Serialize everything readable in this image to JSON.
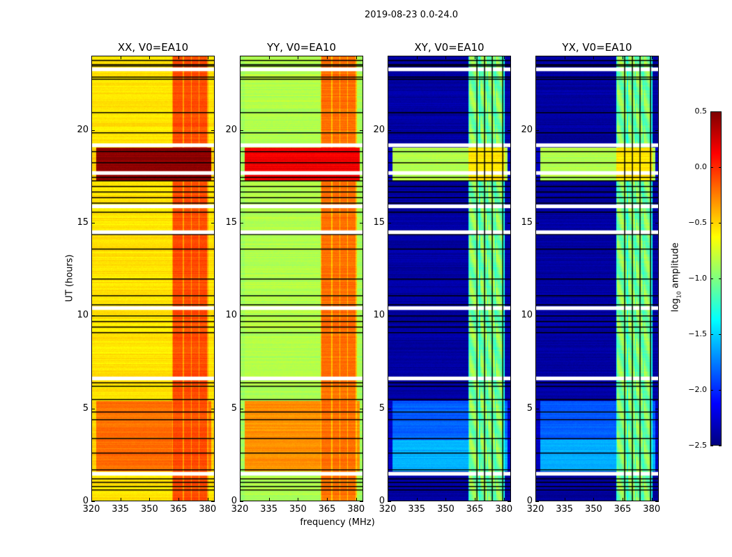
{
  "chart_data": {
    "type": "heatmap",
    "title": "2019-08-23 0.0-24.0",
    "xlabel": "frequency (MHz)",
    "ylabel": "UT (hours)",
    "xlim": [
      320,
      383.7
    ],
    "ylim": [
      0,
      24
    ],
    "xticks": [
      320,
      335,
      350,
      365,
      380
    ],
    "yticks": [
      0,
      5,
      10,
      15,
      20
    ],
    "colorbar": {
      "label_prefix": "log",
      "label_sub": "10",
      "label_suffix": " amplitude",
      "range": [
        -2.5,
        0.5
      ],
      "ticks": [
        0.5,
        0.0,
        -0.5,
        -1.0,
        -1.5,
        -2.0,
        -2.5
      ],
      "tick_labels": [
        "0.5",
        "0.0",
        "−0.5",
        "−1.0",
        "−1.5",
        "−2.0",
        "−2.5"
      ],
      "colormap": "jet"
    },
    "flagged_white_hours": [
      [
        23.2,
        23.4
      ],
      [
        19.1,
        19.3
      ],
      [
        17.6,
        17.8
      ],
      [
        15.8,
        16.0
      ],
      [
        14.4,
        14.6
      ],
      [
        10.3,
        10.5
      ],
      [
        6.5,
        6.7
      ],
      [
        1.35,
        1.55
      ]
    ],
    "black_line_hours": [
      23.8,
      23.6,
      23.5,
      22.9,
      22.8,
      21.0,
      19.9,
      18.9,
      18.3,
      17.5,
      17.3,
      17.0,
      16.7,
      16.4,
      16.1,
      15.6,
      14.4,
      13.6,
      12.0,
      11.1,
      10.6,
      10.0,
      9.7,
      9.4,
      9.1,
      6.4,
      6.2,
      5.5,
      4.8,
      4.4,
      3.4,
      2.6,
      1.7,
      1.2,
      1.0,
      0.8,
      0.6
    ],
    "panels": [
      {
        "title": "XX, V0=EA10",
        "base": -0.55,
        "band": -0.1,
        "hot": 0.45,
        "low_seg": -0.2,
        "edge": -0.6
      },
      {
        "title": "YY, V0=EA10",
        "base": -0.85,
        "band": -0.2,
        "hot": 0.15,
        "low_seg": -0.3,
        "edge": -1.0
      },
      {
        "title": "XY, V0=EA10",
        "base": -2.4,
        "band": -1.0,
        "hot": -0.55,
        "low_seg": -1.85,
        "edge": -2.4
      },
      {
        "title": "YX, V0=EA10",
        "base": -2.4,
        "band": -1.0,
        "hot": -0.55,
        "low_seg": -1.85,
        "edge": -2.4
      }
    ],
    "band_segments_mhz": [
      [
        362,
        367
      ],
      [
        368,
        371.5
      ],
      [
        372,
        375.5
      ],
      [
        376,
        380
      ]
    ]
  }
}
